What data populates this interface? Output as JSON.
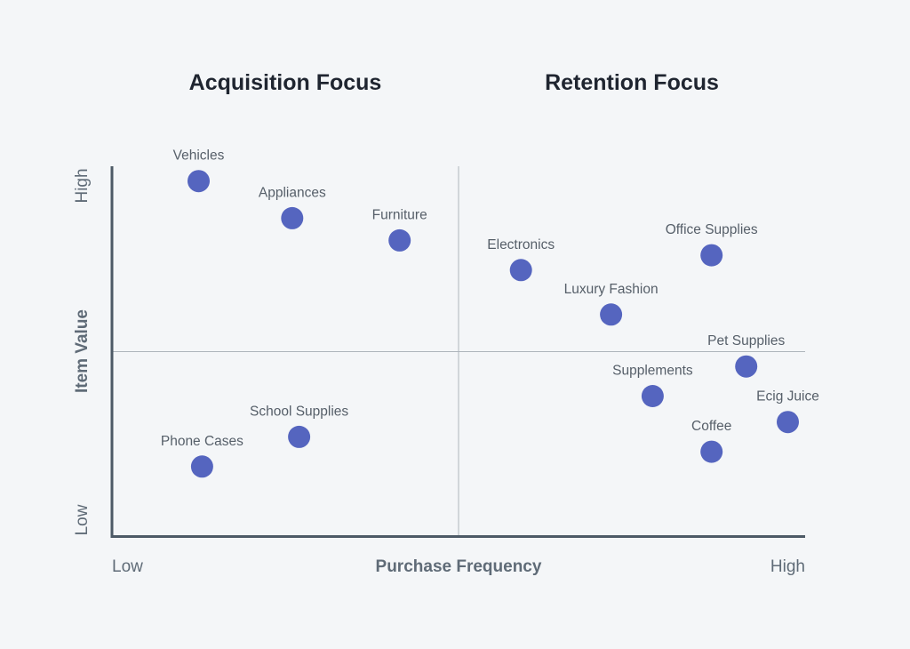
{
  "quadrant_titles": {
    "left": "Acquisition Focus",
    "right": "Retention Focus"
  },
  "colors": {
    "background": "#f4f6f8",
    "point": "#5565bf",
    "axis": "#4d5a66",
    "divider": "#aeb5bc",
    "axis_text": "#5f6b77",
    "label_text": "#565f69"
  },
  "chart_data": {
    "type": "scatter",
    "title": "",
    "xlabel": "Purchase Frequency",
    "ylabel": "Item Value",
    "x_tick_labels": {
      "low": "Low",
      "high": "High"
    },
    "y_tick_labels": {
      "low": "Low",
      "high": "High"
    },
    "xlim": [
      0,
      100
    ],
    "ylim": [
      0,
      100
    ],
    "grid": false,
    "dividers": {
      "x": 50,
      "y": 50
    },
    "points": [
      {
        "label": "Vehicles",
        "x": 12.5,
        "y": 96
      },
      {
        "label": "Appliances",
        "x": 26,
        "y": 86
      },
      {
        "label": "Furniture",
        "x": 41.5,
        "y": 80
      },
      {
        "label": "Electronics",
        "x": 59,
        "y": 72
      },
      {
        "label": "Office Supplies",
        "x": 86.5,
        "y": 76
      },
      {
        "label": "Luxury Fashion",
        "x": 72,
        "y": 60
      },
      {
        "label": "Pet Supplies",
        "x": 91.5,
        "y": 46
      },
      {
        "label": "Supplements",
        "x": 78,
        "y": 38
      },
      {
        "label": "Ecig Juice",
        "x": 97.5,
        "y": 31
      },
      {
        "label": "Coffee",
        "x": 86.5,
        "y": 23
      },
      {
        "label": "School Supplies",
        "x": 27,
        "y": 27
      },
      {
        "label": "Phone Cases",
        "x": 13,
        "y": 19
      }
    ]
  }
}
